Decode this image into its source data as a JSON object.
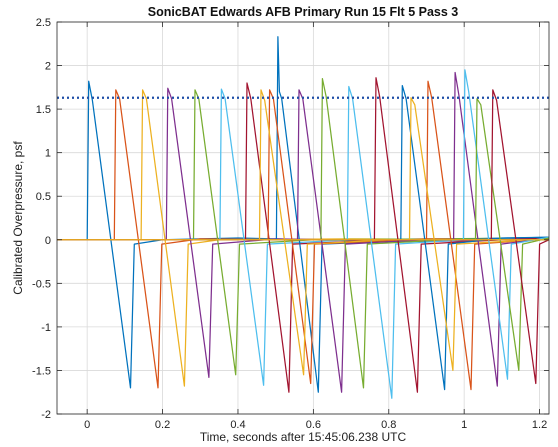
{
  "chart_data": {
    "type": "line",
    "title": "SonicBAT Edwards AFB Primary Run 15 Flt 5 Pass 3",
    "xlabel": "Time, seconds after 15:45:06.238 UTC",
    "ylabel": "Calibrated Overpressure, psf",
    "xlim": [
      -0.08,
      1.225
    ],
    "ylim": [
      -2,
      2.5
    ],
    "grid": true,
    "x_ticks": [
      0,
      0.2,
      0.4,
      0.6,
      0.8,
      1,
      1.2
    ],
    "x_tick_labels": [
      "0",
      "0.2",
      "0.4",
      "0.6",
      "0.8",
      "1",
      "1.2"
    ],
    "y_ticks": [
      -2,
      -1.5,
      -1,
      -0.5,
      0,
      0.5,
      1,
      1.5,
      2,
      2.5
    ],
    "y_tick_labels": [
      "-2",
      "-1.5",
      "-1",
      "-0.5",
      "0",
      "0.5",
      "1",
      "1.5",
      "2",
      "2.5"
    ],
    "reference_line": {
      "y": 1.63,
      "color": "#1f4fa8",
      "style": "dotted"
    },
    "series": [
      {
        "color": "#0072BD",
        "values": [
          [
            -0.08,
            0
          ],
          [
            0.0,
            0
          ],
          [
            0.004,
            1.82
          ],
          [
            0.014,
            1.6
          ],
          [
            0.115,
            -1.7
          ],
          [
            0.125,
            -0.05
          ],
          [
            0.2,
            0
          ],
          [
            0.4,
            0.02
          ],
          [
            0.7,
            -0.01
          ],
          [
            1.225,
            0.02
          ]
        ]
      },
      {
        "color": "#D95319",
        "values": [
          [
            -0.08,
            0
          ],
          [
            0.072,
            0
          ],
          [
            0.076,
            1.72
          ],
          [
            0.086,
            1.62
          ],
          [
            0.188,
            -1.7
          ],
          [
            0.198,
            -0.05
          ],
          [
            0.3,
            0.01
          ],
          [
            0.6,
            0
          ],
          [
            1.225,
            0.01
          ]
        ]
      },
      {
        "color": "#EDB120",
        "values": [
          [
            -0.08,
            0
          ],
          [
            0.143,
            0
          ],
          [
            0.147,
            1.72
          ],
          [
            0.157,
            1.62
          ],
          [
            0.258,
            -1.68
          ],
          [
            0.268,
            -0.05
          ],
          [
            0.35,
            0
          ],
          [
            0.7,
            0.01
          ],
          [
            1.225,
            0
          ]
        ]
      },
      {
        "color": "#7E2F8E",
        "values": [
          [
            -0.08,
            0
          ],
          [
            0.21,
            0
          ],
          [
            0.214,
            1.74
          ],
          [
            0.224,
            1.62
          ],
          [
            0.323,
            -1.58
          ],
          [
            0.333,
            -0.05
          ],
          [
            0.5,
            0.01
          ],
          [
            0.9,
            -0.02
          ],
          [
            1.225,
            0.01
          ]
        ]
      },
      {
        "color": "#77AC30",
        "values": [
          [
            -0.08,
            0
          ],
          [
            0.282,
            0
          ],
          [
            0.286,
            1.72
          ],
          [
            0.296,
            1.62
          ],
          [
            0.394,
            -1.55
          ],
          [
            0.404,
            -0.05
          ],
          [
            0.6,
            0
          ],
          [
            1.225,
            0.02
          ]
        ]
      },
      {
        "color": "#4DBEEE",
        "values": [
          [
            -0.08,
            0
          ],
          [
            0.352,
            0
          ],
          [
            0.356,
            1.73
          ],
          [
            0.366,
            1.62
          ],
          [
            0.468,
            -1.67
          ],
          [
            0.478,
            -0.05
          ],
          [
            0.7,
            0
          ],
          [
            1.225,
            0.01
          ]
        ]
      },
      {
        "color": "#A2142F",
        "values": [
          [
            -0.08,
            0
          ],
          [
            0.42,
            0
          ],
          [
            0.424,
            1.8
          ],
          [
            0.434,
            1.62
          ],
          [
            0.535,
            -1.75
          ],
          [
            0.545,
            -0.05
          ],
          [
            0.8,
            0
          ],
          [
            1.225,
            0
          ]
        ]
      },
      {
        "color": "#0072BD",
        "values": [
          [
            -0.08,
            0
          ],
          [
            0.502,
            0
          ],
          [
            0.506,
            2.33
          ],
          [
            0.51,
            1.7
          ],
          [
            0.516,
            1.62
          ],
          [
            0.613,
            -1.75
          ],
          [
            0.623,
            -0.05
          ],
          [
            0.9,
            0
          ],
          [
            1.225,
            0.03
          ]
        ]
      },
      {
        "color": "#D95319",
        "values": [
          [
            -0.08,
            0
          ],
          [
            0.48,
            0
          ],
          [
            0.484,
            1.72
          ],
          [
            0.494,
            1.62
          ],
          [
            0.593,
            -1.65
          ],
          [
            0.603,
            -0.05
          ],
          [
            0.9,
            0.01
          ],
          [
            1.225,
            0
          ]
        ]
      },
      {
        "color": "#EDB120",
        "values": [
          [
            -0.08,
            0
          ],
          [
            0.457,
            0
          ],
          [
            0.461,
            1.72
          ],
          [
            0.471,
            1.6
          ],
          [
            0.574,
            -1.55
          ],
          [
            0.584,
            -0.05
          ],
          [
            0.8,
            0
          ],
          [
            1.225,
            0.01
          ]
        ]
      },
      {
        "color": "#7E2F8E",
        "values": [
          [
            -0.08,
            0
          ],
          [
            0.558,
            0
          ],
          [
            0.562,
            1.72
          ],
          [
            0.572,
            1.62
          ],
          [
            0.675,
            -1.75
          ],
          [
            0.685,
            -0.05
          ],
          [
            0.9,
            0
          ],
          [
            1.225,
            0.02
          ]
        ]
      },
      {
        "color": "#77AC30",
        "values": [
          [
            -0.08,
            0
          ],
          [
            0.62,
            0
          ],
          [
            0.624,
            1.85
          ],
          [
            0.634,
            1.64
          ],
          [
            0.733,
            -1.7
          ],
          [
            0.743,
            -0.05
          ],
          [
            1.0,
            0.01
          ],
          [
            1.225,
            0
          ]
        ]
      },
      {
        "color": "#4DBEEE",
        "values": [
          [
            -0.08,
            0
          ],
          [
            0.69,
            0
          ],
          [
            0.694,
            1.76
          ],
          [
            0.704,
            1.62
          ],
          [
            0.808,
            -1.82
          ],
          [
            0.818,
            -0.05
          ],
          [
            1.0,
            0
          ],
          [
            1.225,
            0.01
          ]
        ]
      },
      {
        "color": "#A2142F",
        "values": [
          [
            -0.08,
            0
          ],
          [
            0.762,
            0
          ],
          [
            0.766,
            1.86
          ],
          [
            0.776,
            1.64
          ],
          [
            0.876,
            -1.75
          ],
          [
            0.886,
            -0.05
          ],
          [
            1.1,
            0
          ],
          [
            1.225,
            0.02
          ]
        ]
      },
      {
        "color": "#0072BD",
        "values": [
          [
            -0.08,
            0
          ],
          [
            0.832,
            0
          ],
          [
            0.836,
            1.77
          ],
          [
            0.846,
            1.62
          ],
          [
            0.948,
            -1.72
          ],
          [
            0.958,
            -0.05
          ],
          [
            1.1,
            0.02
          ],
          [
            1.225,
            0.03
          ]
        ]
      },
      {
        "color": "#D95319",
        "values": [
          [
            -0.08,
            0
          ],
          [
            0.9,
            0
          ],
          [
            0.904,
            1.82
          ],
          [
            0.914,
            1.63
          ],
          [
            1.018,
            -1.72
          ],
          [
            1.028,
            -0.05
          ],
          [
            1.225,
            0.01
          ]
        ]
      },
      {
        "color": "#EDB120",
        "values": [
          [
            -0.08,
            0
          ],
          [
            0.855,
            0
          ],
          [
            0.859,
            1.63
          ],
          [
            0.869,
            1.55
          ],
          [
            0.97,
            -1.5
          ],
          [
            0.98,
            -0.05
          ],
          [
            1.225,
            0.01
          ]
        ]
      },
      {
        "color": "#7E2F8E",
        "values": [
          [
            -0.08,
            0
          ],
          [
            0.972,
            0
          ],
          [
            0.976,
            1.92
          ],
          [
            0.986,
            1.66
          ],
          [
            1.088,
            -1.68
          ],
          [
            1.098,
            -0.05
          ],
          [
            1.225,
            0.02
          ]
        ]
      },
      {
        "color": "#4DBEEE",
        "values": [
          [
            -0.08,
            0
          ],
          [
            0.998,
            0
          ],
          [
            1.002,
            1.95
          ],
          [
            1.012,
            1.7
          ],
          [
            1.115,
            -1.6
          ],
          [
            1.125,
            -0.05
          ],
          [
            1.225,
            0.03
          ]
        ]
      },
      {
        "color": "#77AC30",
        "values": [
          [
            -0.08,
            0
          ],
          [
            1.03,
            0
          ],
          [
            1.034,
            1.62
          ],
          [
            1.044,
            1.55
          ],
          [
            1.145,
            -1.5
          ],
          [
            1.155,
            -0.05
          ],
          [
            1.225,
            0.02
          ]
        ]
      },
      {
        "color": "#A2142F",
        "values": [
          [
            -0.08,
            0
          ],
          [
            1.072,
            0
          ],
          [
            1.076,
            1.72
          ],
          [
            1.086,
            1.6
          ],
          [
            1.19,
            -1.65
          ],
          [
            1.2,
            -0.05
          ],
          [
            1.225,
            0
          ]
        ]
      },
      {
        "color": "#EDB120",
        "values": [
          [
            -0.08,
            0
          ],
          [
            1.225,
            0
          ]
        ]
      }
    ]
  }
}
